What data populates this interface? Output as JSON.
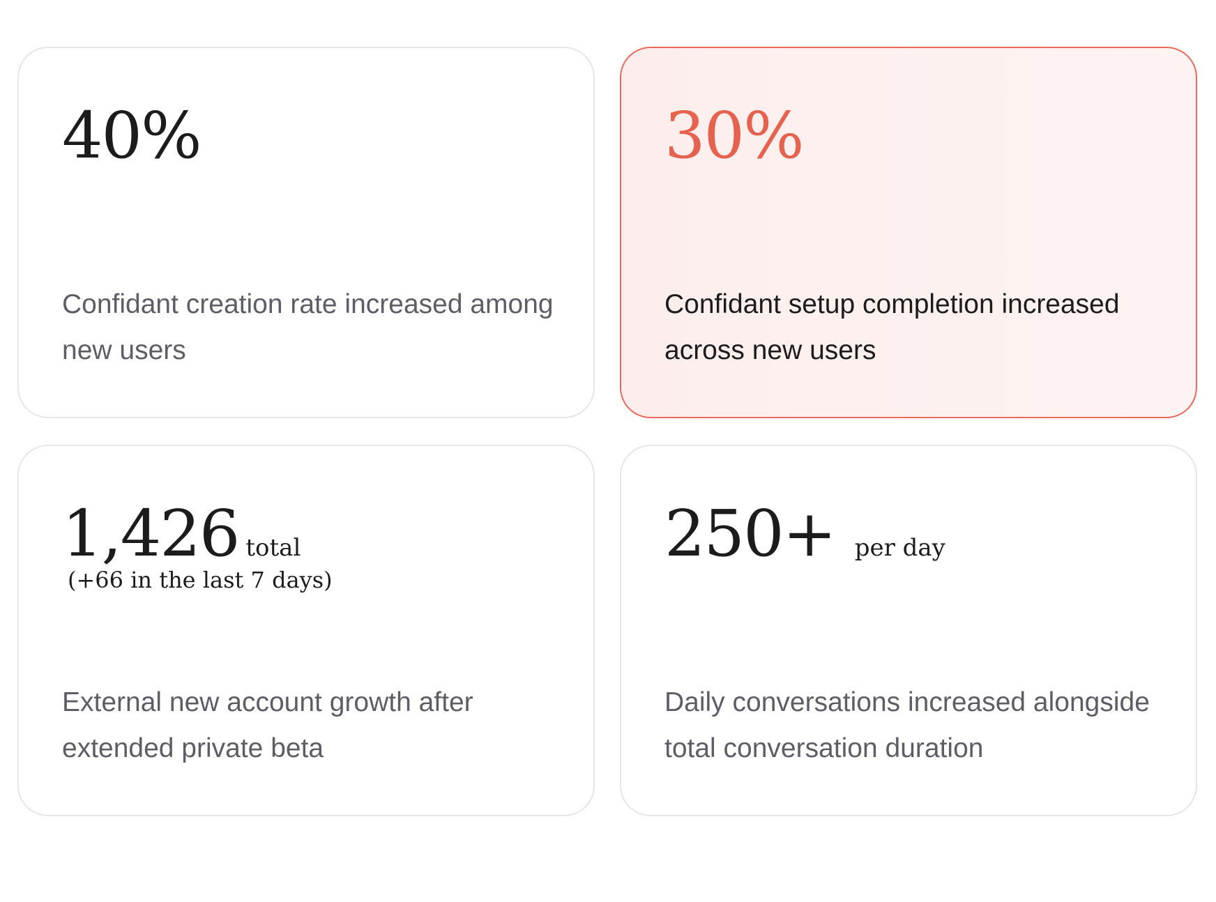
{
  "cards": [
    {
      "value": "40%",
      "description": "Confidant creation rate increased among new users"
    },
    {
      "value": "30%",
      "description": "Confidant setup completion increased across new users"
    },
    {
      "value": "1,426",
      "suffix": "total",
      "note": "(+66 in the last 7 days)",
      "description": "External new account growth after extended private beta"
    },
    {
      "value": "250+",
      "suffix": "per day",
      "description": "Daily conversations increased alongside total conversation duration"
    }
  ]
}
